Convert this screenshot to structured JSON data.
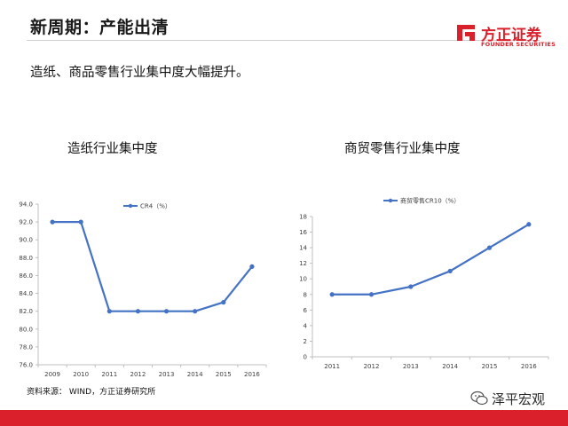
{
  "header": {
    "title": "新周期：产能出清"
  },
  "logo": {
    "cn": "方正证券",
    "en": "FOUNDER SECURITIES"
  },
  "subtitle": "造纸、商品零售行业集中度大幅提升。",
  "source": "资料来源： WIND，方正证券研究所",
  "watermark": "泽平宏观",
  "colors": {
    "brand_red": "#d9202b",
    "series": "#4472c4",
    "axis": "#bfbfbf"
  },
  "chart_data": [
    {
      "type": "line",
      "title": "造纸行业集中度",
      "x": [
        "2009",
        "2010",
        "2011",
        "2012",
        "2013",
        "2014",
        "2015",
        "2016"
      ],
      "series": [
        {
          "name": "CR4（%）",
          "values": [
            92.0,
            92.0,
            82.0,
            82.0,
            82.0,
            82.0,
            83.0,
            87.0
          ]
        }
      ],
      "ylim": [
        76.0,
        94.0
      ],
      "yticks": [
        76.0,
        78.0,
        80.0,
        82.0,
        84.0,
        86.0,
        88.0,
        90.0,
        92.0,
        94.0
      ],
      "ytick_labels": [
        "76.0",
        "78.0",
        "80.0",
        "82.0",
        "84.0",
        "86.0",
        "88.0",
        "90.0",
        "92.0",
        "94.0"
      ],
      "legend": "top",
      "grid": false
    },
    {
      "type": "line",
      "title": "商贸零售行业集中度",
      "x": [
        "2011",
        "2012",
        "2013",
        "2014",
        "2015",
        "2016"
      ],
      "series": [
        {
          "name": "商贸零售CR10（%）",
          "values": [
            8,
            8,
            9,
            11,
            14,
            17
          ]
        }
      ],
      "ylim": [
        0,
        18
      ],
      "yticks": [
        0,
        2,
        4,
        6,
        8,
        10,
        12,
        14,
        16,
        18
      ],
      "ytick_labels": [
        "0",
        "2",
        "4",
        "6",
        "8",
        "10",
        "12",
        "14",
        "16",
        "18"
      ],
      "legend": "top",
      "grid": false
    }
  ]
}
